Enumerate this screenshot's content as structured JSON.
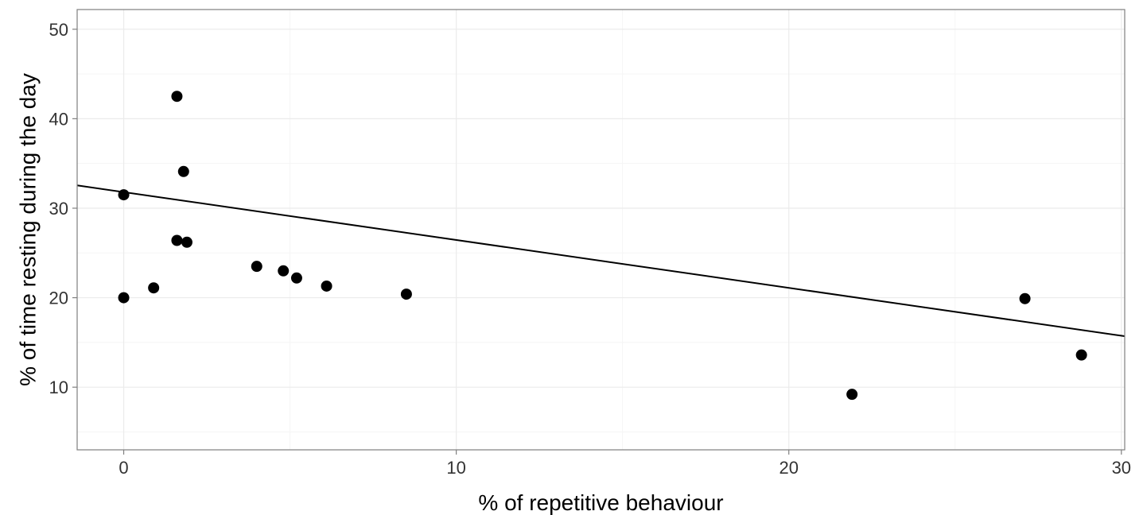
{
  "chart_data": {
    "type": "scatter",
    "title": "",
    "xlabel": "% of repetitive behaviour",
    "ylabel": "% of time resting during the day",
    "xlim": [
      -1.4,
      30.1
    ],
    "ylim": [
      3,
      52.2
    ],
    "x_ticks": [
      0,
      10,
      20,
      30
    ],
    "y_ticks": [
      10,
      20,
      30,
      40,
      50
    ],
    "grid": true,
    "legend": "none",
    "series": [
      {
        "points": [
          {
            "x": 0.0,
            "y": 31.5
          },
          {
            "x": 0.0,
            "y": 20.0
          },
          {
            "x": 0.9,
            "y": 21.1
          },
          {
            "x": 1.6,
            "y": 42.5
          },
          {
            "x": 1.8,
            "y": 34.1
          },
          {
            "x": 1.6,
            "y": 26.4
          },
          {
            "x": 1.9,
            "y": 26.2
          },
          {
            "x": 4.0,
            "y": 23.5
          },
          {
            "x": 4.8,
            "y": 23.0
          },
          {
            "x": 5.2,
            "y": 22.2
          },
          {
            "x": 6.1,
            "y": 21.3
          },
          {
            "x": 8.5,
            "y": 20.4
          },
          {
            "x": 21.9,
            "y": 9.2
          },
          {
            "x": 27.1,
            "y": 19.9
          },
          {
            "x": 28.8,
            "y": 13.6
          }
        ]
      }
    ],
    "trend_line": {
      "type": "linear",
      "intercept": 31.8,
      "slope": -0.535
    }
  },
  "colors": {
    "points": "#000000",
    "line": "#000000",
    "grid": "#ebebeb",
    "border": "#7f7f7f",
    "background": "#ffffff"
  }
}
